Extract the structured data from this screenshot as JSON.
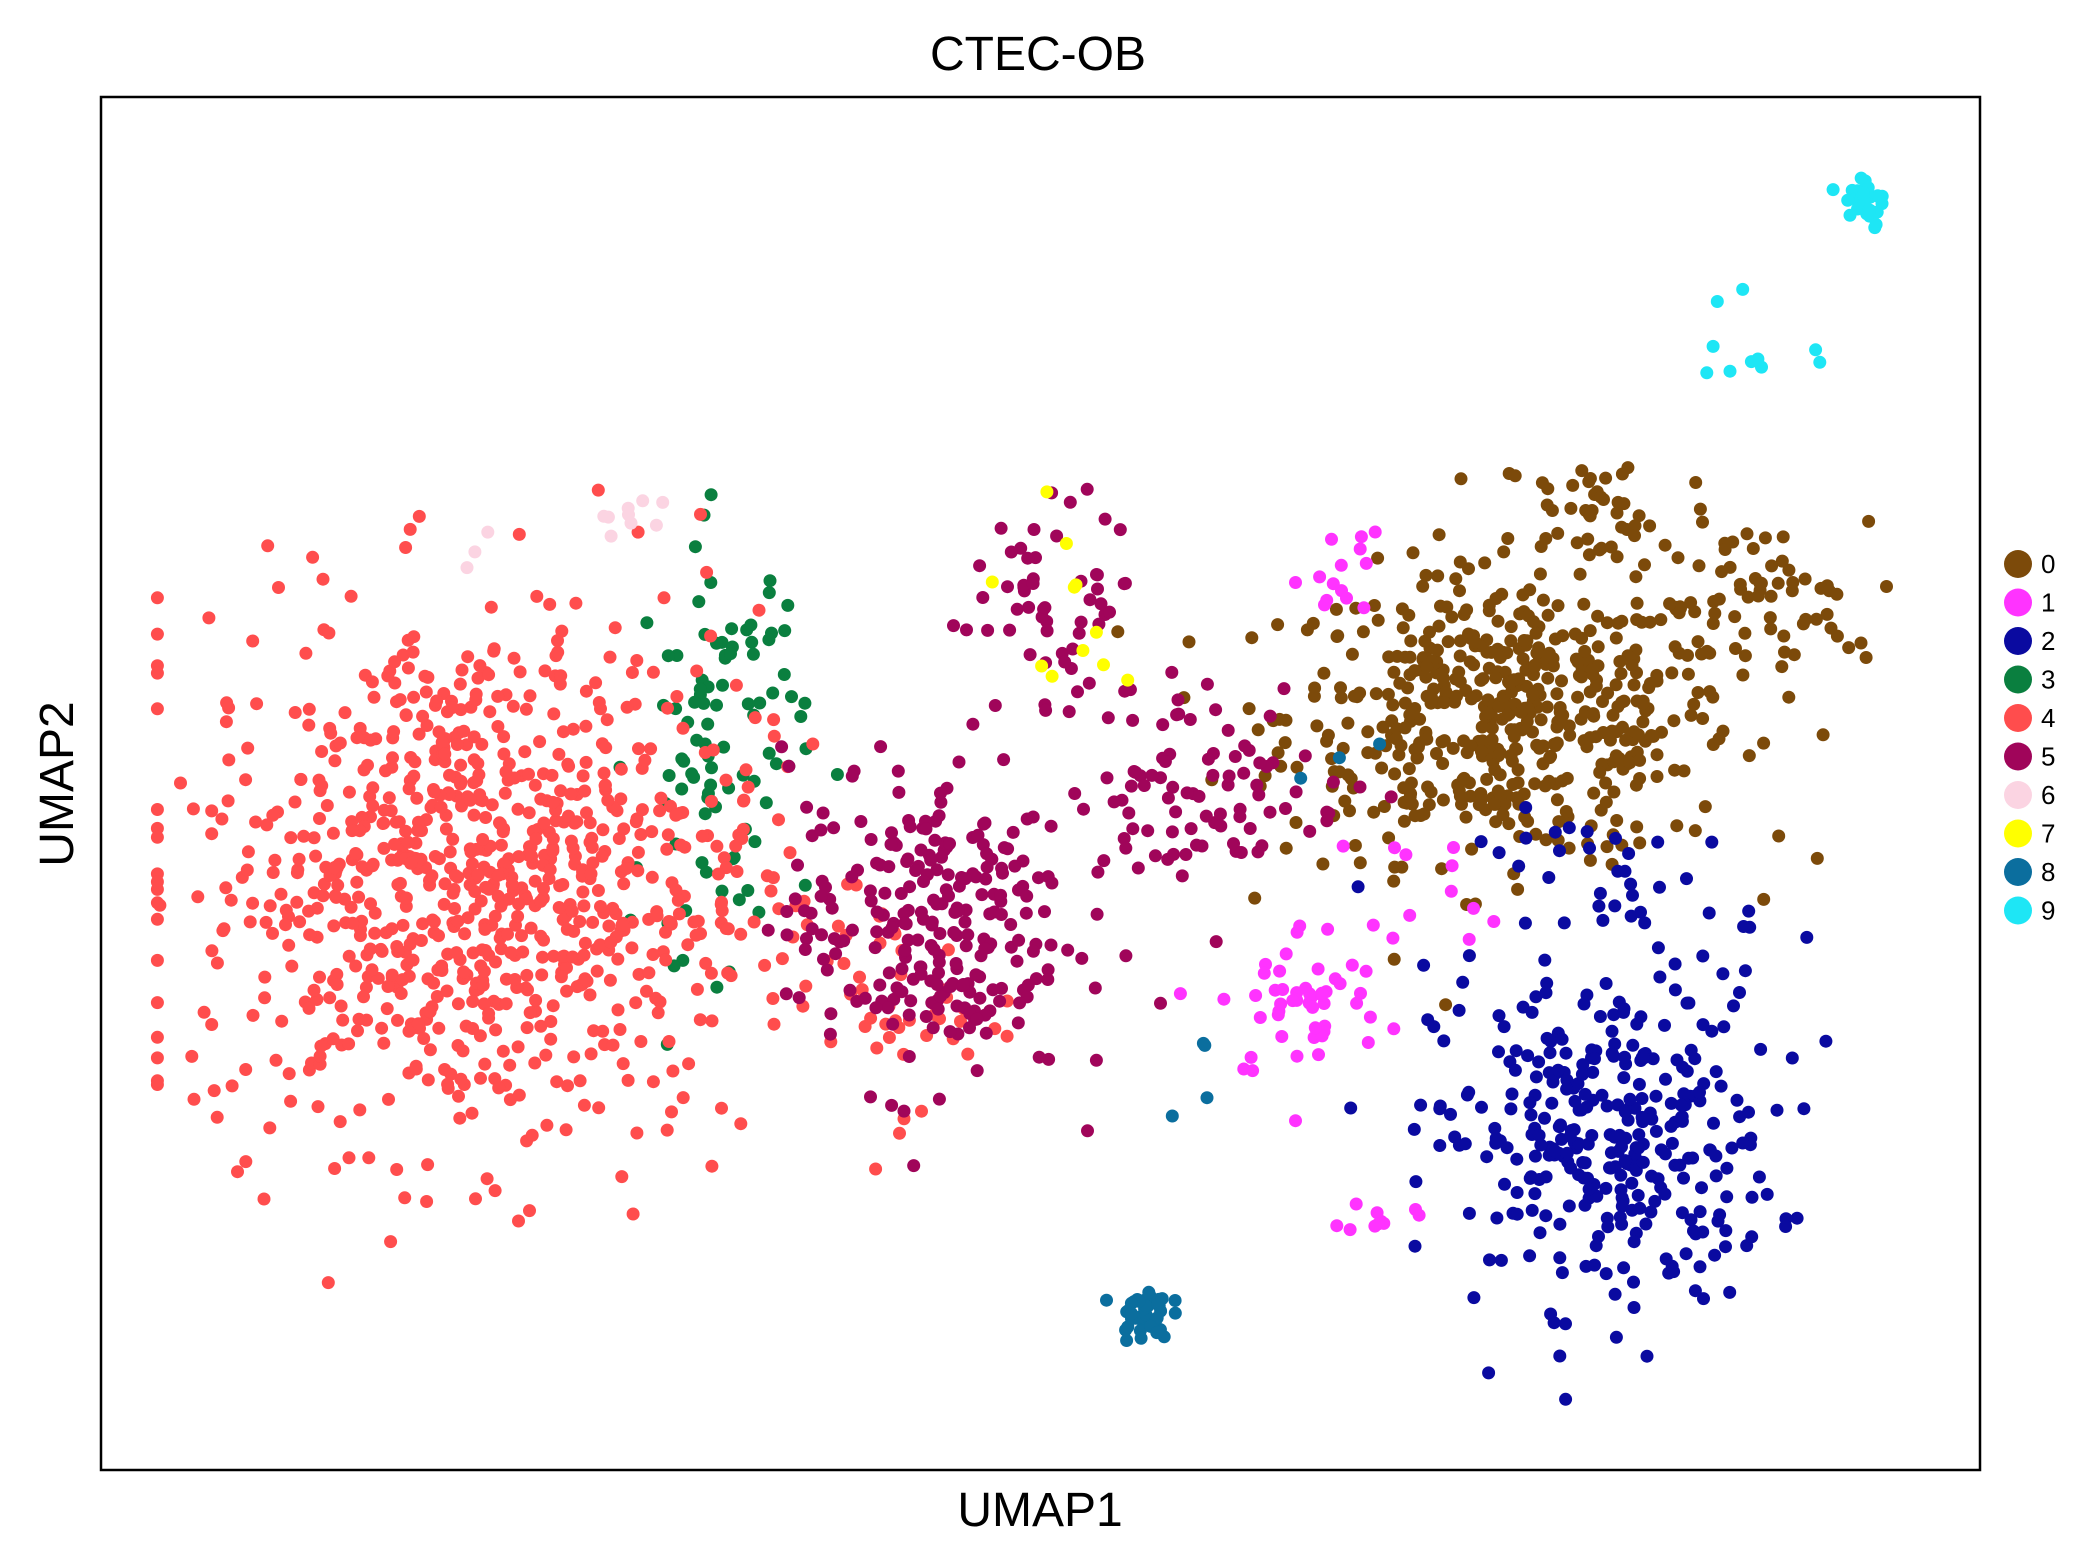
{
  "chart_data": {
    "type": "scatter",
    "title": "CTEC-OB",
    "xlabel": "UMAP1",
    "ylabel": "UMAP2",
    "xlim": [
      0,
      100
    ],
    "ylim": [
      0,
      100
    ],
    "xticks": "none",
    "yticks": "none",
    "grid": false,
    "legend_position": "right",
    "marker": "filled-circle",
    "series": [
      {
        "name": "0",
        "color": "#7c4a0a",
        "clusters": [
          {
            "center": [
              75,
              55
            ],
            "spread": [
              8,
              7
            ],
            "count": 540
          },
          {
            "center": [
              88,
              63
            ],
            "spread": [
              4,
              4
            ],
            "count": 60
          },
          {
            "center": [
              80,
              70
            ],
            "spread": [
              4,
              3
            ],
            "count": 40
          }
        ]
      },
      {
        "name": "1",
        "color": "#ff33ff",
        "clusters": [
          {
            "center": [
              64,
              34
            ],
            "spread": [
              3,
              4
            ],
            "count": 50
          },
          {
            "center": [
              66,
              66
            ],
            "spread": [
              1.5,
              3
            ],
            "count": 14
          },
          {
            "center": [
              68,
              18.5
            ],
            "spread": [
              1.2,
              0.8
            ],
            "count": 10
          },
          {
            "center": [
              72,
              43
            ],
            "spread": [
              3,
              3
            ],
            "count": 12
          }
        ]
      },
      {
        "name": "2",
        "color": "#0a0aa0",
        "clusters": [
          {
            "center": [
              80,
              24
            ],
            "spread": [
              6,
              8
            ],
            "count": 330
          },
          {
            "center": [
              81,
              42
            ],
            "spread": [
              5,
              4
            ],
            "count": 40
          }
        ]
      },
      {
        "name": "3",
        "color": "#0a7f3f",
        "clusters": [
          {
            "center": [
              33,
              53
            ],
            "spread": [
              3,
              10
            ],
            "count": 95
          }
        ]
      },
      {
        "name": "4",
        "color": "#ff4d4d",
        "clusters": [
          {
            "center": [
              20,
              43
            ],
            "spread": [
              10,
              13
            ],
            "count": 900
          },
          {
            "center": [
              42,
              34
            ],
            "spread": [
              4,
              5
            ],
            "count": 40
          }
        ]
      },
      {
        "name": "5",
        "color": "#a0055a",
        "clusters": [
          {
            "center": [
              44,
              40
            ],
            "spread": [
              5,
              8
            ],
            "count": 260
          },
          {
            "center": [
              51,
              63
            ],
            "spread": [
              3,
              5
            ],
            "count": 55
          },
          {
            "center": [
              59,
              50
            ],
            "spread": [
              5,
              5
            ],
            "count": 90
          }
        ]
      },
      {
        "name": "6",
        "color": "#fbd4e2",
        "clusters": [
          {
            "center": [
              28,
              69.5
            ],
            "spread": [
              1.5,
              1
            ],
            "count": 9
          },
          {
            "center": [
              19,
              68
            ],
            "spread": [
              1,
              1
            ],
            "count": 3
          }
        ]
      },
      {
        "name": "7",
        "color": "#ffff00",
        "clusters": [
          {
            "center": [
              51,
              62
            ],
            "spread": [
              2,
              5
            ],
            "count": 11
          }
        ]
      },
      {
        "name": "8",
        "color": "#0b6e9e",
        "clusters": [
          {
            "center": [
              55.5,
              11.5
            ],
            "spread": [
              0.9,
              1.3
            ],
            "count": 42
          },
          {
            "center": [
              57,
              30
            ],
            "spread": [
              1.5,
              3
            ],
            "count": 4
          },
          {
            "center": [
              66,
              52
            ],
            "spread": [
              2,
              2
            ],
            "count": 3
          }
        ]
      },
      {
        "name": "9",
        "color": "#1ee6f5",
        "clusters": [
          {
            "center": [
              93.8,
              92.5
            ],
            "spread": [
              0.9,
              1.8
            ],
            "count": 28
          },
          {
            "center": [
              88,
              82
            ],
            "spread": [
              1.8,
              3
            ],
            "count": 10
          }
        ]
      }
    ]
  }
}
